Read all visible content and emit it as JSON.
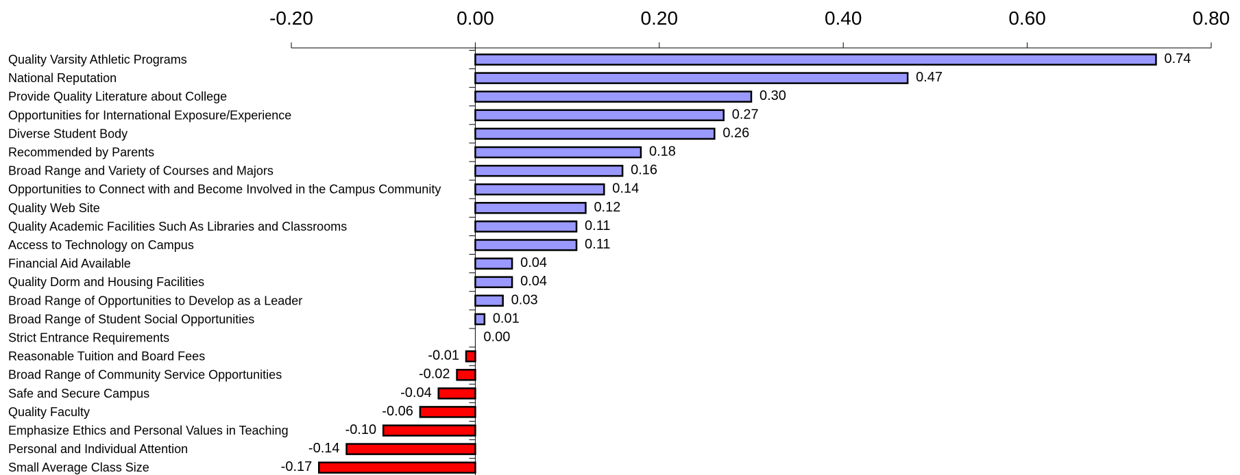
{
  "chart_data": {
    "type": "bar",
    "orientation": "horizontal",
    "title": "",
    "xlabel": "",
    "ylabel": "",
    "xlim": [
      -0.2,
      0.8
    ],
    "x_ticks": [
      "-0.20",
      "0.00",
      "0.20",
      "0.40",
      "0.60",
      "0.80"
    ],
    "x_axis_position": "top",
    "grid": false,
    "legend": "none",
    "colors": {
      "positive_fill": "#9999ff",
      "negative_fill": "#ff0000",
      "bar_stroke": "#000000",
      "negative_label_color": "#ff0000",
      "label_color": "#000000"
    },
    "categories": [
      "Quality Varsity Athletic Programs",
      "National Reputation",
      "Provide Quality Literature about College",
      "Opportunities for International Exposure/Experience",
      "Diverse Student Body",
      "Recommended by Parents",
      "Broad Range and Variety of Courses and Majors",
      "Opportunities to Connect with and Become Involved in the Campus Community",
      "Quality Web Site",
      "Quality Academic Facilities Such As Libraries and Classrooms",
      "Access to Technology on Campus",
      "Financial Aid Available",
      "Quality Dorm and Housing Facilities",
      "Broad Range of Opportunities to Develop as a Leader",
      "Broad Range of Student Social Opportunities",
      "Strict Entrance Requirements",
      "Reasonable Tuition and Board Fees",
      "Broad Range of Community Service Opportunities",
      "Safe and Secure Campus",
      "Quality Faculty",
      "Emphasize Ethics and Personal Values in Teaching",
      "Personal and Individual Attention",
      "Small Average Class Size"
    ],
    "values": [
      0.74,
      0.47,
      0.3,
      0.27,
      0.26,
      0.18,
      0.16,
      0.14,
      0.12,
      0.11,
      0.11,
      0.04,
      0.04,
      0.03,
      0.01,
      0.0,
      -0.01,
      -0.02,
      -0.04,
      -0.06,
      -0.1,
      -0.14,
      -0.17
    ],
    "value_labels": [
      "0.74",
      "0.47",
      "0.30",
      "0.27",
      "0.26",
      "0.18",
      "0.16",
      "0.14",
      "0.12",
      "0.11",
      "0.11",
      "0.04",
      "0.04",
      "0.03",
      "0.01",
      "0.00",
      "-0.01",
      "-0.02",
      "-0.04",
      "-0.06",
      "-0.10",
      "-0.14",
      "-0.17"
    ]
  }
}
